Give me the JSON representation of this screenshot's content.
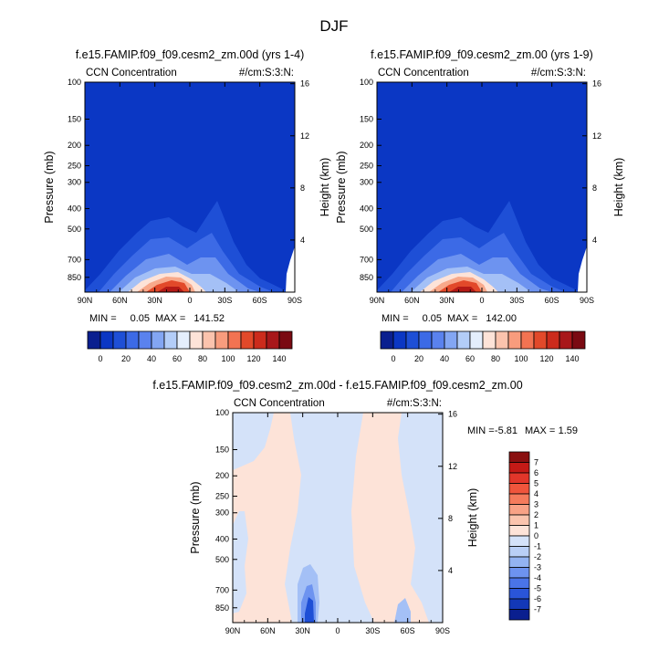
{
  "figure": {
    "title": "DJF"
  },
  "chart_data": [
    {
      "type": "heatmap",
      "title": "f.e15.FAMIP.f09_f09.cesm2_zm.00d (yrs 1-4)",
      "left_string": "CCN Concentration",
      "right_string": "#/cm:S:3:N:",
      "ylabel": "Pressure (mb)",
      "y2label": "Height (km)",
      "x_ticks": [
        "90N",
        "60N",
        "30N",
        "0",
        "30S",
        "60S",
        "90S"
      ],
      "y_ticks": [
        "100",
        "150",
        "200",
        "250",
        "300",
        "400",
        "500",
        "700",
        "850"
      ],
      "y2_ticks": [
        "16",
        "12",
        "8",
        "4"
      ],
      "min_label": "MIN =",
      "min": "0.05",
      "max_label": "MAX =",
      "max": "141.52",
      "colorbar_ticks": [
        "0",
        "20",
        "40",
        "60",
        "80",
        "100",
        "120",
        "140"
      ]
    },
    {
      "type": "heatmap",
      "title": "f.e15.FAMIP.f09_f09.cesm2_zm.00 (yrs 1-9)",
      "left_string": "CCN Concentration",
      "right_string": "#/cm:S:3:N:",
      "ylabel": "Pressure (mb)",
      "y2label": "Height (km)",
      "x_ticks": [
        "90N",
        "60N",
        "30N",
        "0",
        "30S",
        "60S",
        "90S"
      ],
      "y_ticks": [
        "100",
        "150",
        "200",
        "250",
        "300",
        "400",
        "500",
        "700",
        "850"
      ],
      "y2_ticks": [
        "16",
        "12",
        "8",
        "4"
      ],
      "min_label": "MIN =",
      "min": "0.05",
      "max_label": "MAX =",
      "max": "142.00",
      "colorbar_ticks": [
        "0",
        "20",
        "40",
        "60",
        "80",
        "100",
        "120",
        "140"
      ]
    },
    {
      "type": "heatmap",
      "title": "f.e15.FAMIP.f09_f09.cesm2_zm.00d - f.e15.FAMIP.f09_f09.cesm2_zm.00",
      "left_string": "CCN Concentration",
      "right_string": "#/cm:S:3:N:",
      "ylabel": "Pressure (mb)",
      "y2label": "Height (km)",
      "x_ticks": [
        "90N",
        "60N",
        "30N",
        "0",
        "30S",
        "60S",
        "90S"
      ],
      "y_ticks": [
        "100",
        "150",
        "200",
        "250",
        "300",
        "400",
        "500",
        "700",
        "850"
      ],
      "y2_ticks": [
        "16",
        "12",
        "8",
        "4"
      ],
      "min_label": "MIN =",
      "min": "-5.81",
      "max_label": "MAX =",
      "max": "1.59",
      "colorbar_ticks": [
        "7",
        "6",
        "5",
        "4",
        "3",
        "2",
        "1",
        "0",
        "-1",
        "-2",
        "-3",
        "-4",
        "-5",
        "-6",
        "-7"
      ]
    }
  ],
  "colors": {
    "abs_scale": [
      "#0a1f8f",
      "#0b37c4",
      "#1e4fd6",
      "#3c6ae6",
      "#5a82ee",
      "#83a6f3",
      "#b3cdf8",
      "#e4eefc",
      "#fde3d8",
      "#fbc3ad",
      "#f89c7d",
      "#f27352",
      "#e2492a",
      "#cc2b1c",
      "#a8171a",
      "#7a0a12"
    ],
    "diff_scale": [
      "#8a1010",
      "#c41a16",
      "#e2362a",
      "#f0553c",
      "#f57b5c",
      "#f9a286",
      "#fbc4ae",
      "#fde3d8",
      "#d4e2f9",
      "#b9cff6",
      "#93b3f2",
      "#6d93f0",
      "#4a74e8",
      "#2a55d8",
      "#1338b8",
      "#0a1f8f"
    ]
  }
}
